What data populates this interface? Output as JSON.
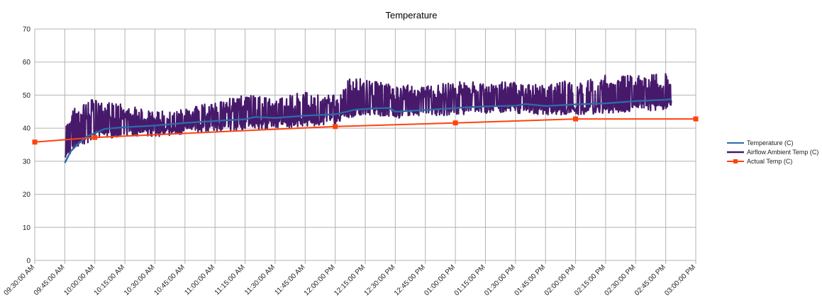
{
  "chart_data": {
    "type": "line",
    "title": "Temperature",
    "xlabel": "",
    "ylabel": "",
    "ylim": [
      0,
      70
    ],
    "yticks": [
      0,
      10,
      20,
      30,
      40,
      50,
      60,
      70
    ],
    "xlim": [
      "09:30:00 AM",
      "03:00:00 PM"
    ],
    "xticks": [
      "09:30:00 AM",
      "09:45:00 AM",
      "10:00:00 AM",
      "10:15:00 AM",
      "10:30:00 AM",
      "10:45:00 AM",
      "11:00:00 AM",
      "11:15:00 AM",
      "11:30:00 AM",
      "11:45:00 AM",
      "12:00:00 PM",
      "12:15:00 PM",
      "12:30:00 PM",
      "12:45:00 PM",
      "01:00:00 PM",
      "01:15:00 PM",
      "01:30:00 PM",
      "01:45:00 PM",
      "02:00:00 PM",
      "02:15:00 PM",
      "02:30:00 PM",
      "02:45:00 PM",
      "03:00:00 PM"
    ],
    "grid": true,
    "legend_position": "right",
    "series": [
      {
        "name": "Temperature (C)",
        "color": "#2e6aa8",
        "x": [
          "09:45:00 AM",
          "09:48:00 AM",
          "09:52:00 AM",
          "09:56:00 AM",
          "10:00:00 AM",
          "10:05:00 AM",
          "10:15:00 AM",
          "10:30:00 AM",
          "10:45:00 AM",
          "11:00:00 AM",
          "11:15:00 AM",
          "11:20:00 AM",
          "11:30:00 AM",
          "11:45:00 AM",
          "12:00:00 PM",
          "12:10:00 PM",
          "12:20:00 PM",
          "12:27:00 PM",
          "12:30:00 PM",
          "12:45:00 PM",
          "01:00:00 PM",
          "01:15:00 PM",
          "01:30:00 PM",
          "01:35:00 PM",
          "01:45:00 PM",
          "02:00:00 PM",
          "02:15:00 PM",
          "02:30:00 PM",
          "02:45:00 PM",
          "02:48:00 PM"
        ],
        "values": [
          29.5,
          33.0,
          35.5,
          37.5,
          38.5,
          39.8,
          40.3,
          40.8,
          41.6,
          42.2,
          42.7,
          43.4,
          43.1,
          43.8,
          44.2,
          45.6,
          46.0,
          46.1,
          45.0,
          45.5,
          46.1,
          46.6,
          46.8,
          47.3,
          46.7,
          47.2,
          47.5,
          48.2,
          48.6,
          48.8
        ]
      },
      {
        "name": "Airflow Ambient Temp (C)",
        "color": "#46196b",
        "x": [
          "09:45:00 AM",
          "10:00:00 AM",
          "10:15:00 AM",
          "10:30:00 AM",
          "10:45:00 AM",
          "11:00:00 AM",
          "11:15:00 AM",
          "11:30:00 AM",
          "11:45:00 AM",
          "12:00:00 PM",
          "12:05:00 PM",
          "12:15:00 PM",
          "12:30:00 PM",
          "12:45:00 PM",
          "01:00:00 PM",
          "01:15:00 PM",
          "01:30:00 PM",
          "01:45:00 PM",
          "02:00:00 PM",
          "02:15:00 PM",
          "02:30:00 PM",
          "02:45:00 PM",
          "02:48:00 PM"
        ],
        "low": [
          31,
          37,
          37,
          37.5,
          38,
          39,
          39.5,
          40,
          40.5,
          41,
          43,
          44,
          43,
          43.5,
          44,
          44.5,
          44.5,
          44,
          44,
          44.5,
          45,
          45.5,
          46
        ],
        "high": [
          45,
          49,
          47,
          45,
          46,
          48,
          50,
          49,
          51,
          50,
          55,
          55,
          53,
          53,
          54,
          54,
          54,
          53,
          55,
          56,
          56,
          57,
          55
        ]
      },
      {
        "name": "Actual Temp (C)",
        "color": "#ff420e",
        "marker": "square",
        "x": [
          "09:30:00 AM",
          "10:00:00 AM",
          "12:00:00 PM",
          "01:00:00 PM",
          "02:00:00 PM",
          "03:00:00 PM"
        ],
        "values": [
          35.8,
          37.2,
          40.5,
          41.6,
          42.8,
          42.8
        ]
      }
    ]
  }
}
